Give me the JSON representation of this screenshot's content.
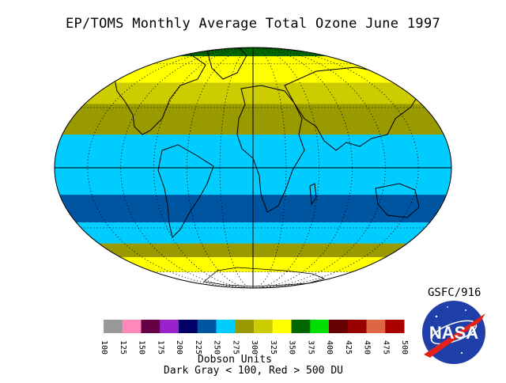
{
  "title": "EP/TOMS Monthly Average Total Ozone June 1997",
  "credit": "GSFC/916",
  "logo_text": "NASA",
  "legend": {
    "units_label": "Dobson Units",
    "note": "Dark Gray < 100, Red > 500 DU",
    "ticks": [
      "100",
      "125",
      "150",
      "175",
      "200",
      "225",
      "250",
      "275",
      "300",
      "325",
      "350",
      "375",
      "400",
      "425",
      "450",
      "475",
      "500"
    ],
    "colors": [
      "#999999",
      "#ff88bb",
      "#660044",
      "#9922cc",
      "#000066",
      "#0055a0",
      "#00ccff",
      "#999900",
      "#cccc00",
      "#ffff00",
      "#006600",
      "#00dd00",
      "#660000",
      "#990000",
      "#dd6644",
      "#aa0000"
    ]
  },
  "bands": [
    {
      "lat": 90,
      "color": "#006600"
    },
    {
      "lat": 68,
      "color": "#ffff00"
    },
    {
      "lat": 45,
      "color": "#cccc00"
    },
    {
      "lat": 32,
      "color": "#999900"
    },
    {
      "lat": 16,
      "color": "#00ccff"
    },
    {
      "lat": -13,
      "color": "#0055a0"
    },
    {
      "lat": -27,
      "color": "#00ccff"
    },
    {
      "lat": -39,
      "color": "#999900"
    },
    {
      "lat": -48,
      "color": "#ffff00"
    },
    {
      "lat": -60,
      "color": "#ffffff"
    }
  ]
}
